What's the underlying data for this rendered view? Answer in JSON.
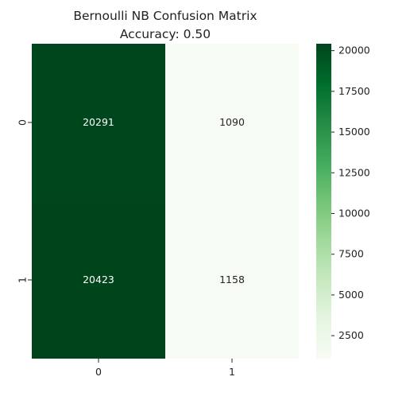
{
  "chart_data": {
    "type": "heatmap",
    "title": "Bernoulli NB Confusion Matrix",
    "subtitle": "Accuracy: 0.50",
    "x_categories": [
      "0",
      "1"
    ],
    "y_categories": [
      "0",
      "1"
    ],
    "values": [
      [
        20291,
        1090
      ],
      [
        20423,
        1158
      ]
    ],
    "annotations": [
      [
        "20291",
        "1090"
      ],
      [
        "20423",
        "1158"
      ]
    ],
    "colormap": "Greens",
    "colorbar": {
      "min": 1090,
      "max": 20423,
      "ticks": [
        2500,
        5000,
        7500,
        10000,
        12500,
        15000,
        17500,
        20000
      ],
      "tick_labels": [
        "2500",
        "5000",
        "7500",
        "10000",
        "12500",
        "15000",
        "17500",
        "20000"
      ]
    },
    "xlabel": "",
    "ylabel": "",
    "grid": false
  }
}
